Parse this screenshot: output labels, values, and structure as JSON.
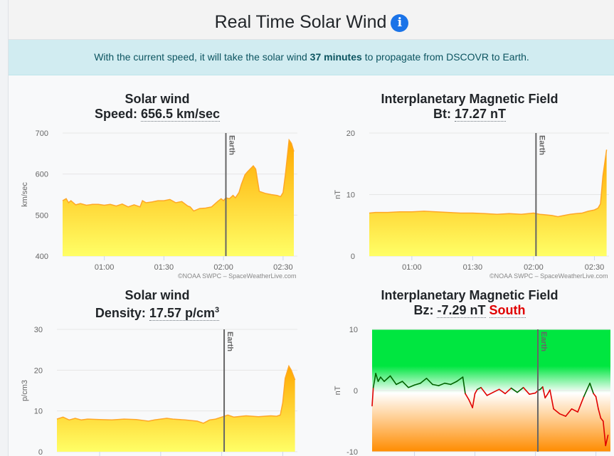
{
  "header": {
    "title": "Real Time Solar Wind",
    "info_icon": "info-icon",
    "accent_color": "#1a73e8"
  },
  "alert": {
    "prefix": "With the current speed, it will take the solar wind",
    "highlight": "37 minutes",
    "suffix": "to propagate from DSCOVR to Earth."
  },
  "charts": {
    "speed": {
      "title": "Solar wind",
      "label": "Speed:",
      "value": "656.5 km/sec",
      "credit": "©NOAA SWPC – SpaceWeatherLive.com"
    },
    "bt": {
      "title": "Interplanetary Magnetic Field",
      "label": "Bt:",
      "value": "17.27 nT",
      "credit": "©NOAA SWPC – SpaceWeatherLive.com"
    },
    "density": {
      "title": "Solar wind",
      "label": "Density:",
      "value": "17.57 p/cm",
      "value_sup": "3"
    },
    "bz": {
      "title": "Interplanetary Magnetic Field",
      "label": "Bz:",
      "value": "-7.29 nT",
      "direction": "South"
    }
  },
  "chart_data": [
    {
      "id": "speed",
      "type": "area",
      "ylabel": "km/sec",
      "ylim": [
        400,
        700
      ],
      "yticks": [
        400,
        500,
        600,
        700
      ],
      "xlim": [
        0.65,
        2.62
      ],
      "xticks": [
        1.0,
        1.5,
        2.0,
        2.5
      ],
      "xticklabels": [
        "01:00",
        "01:30",
        "02:00",
        "02:30"
      ],
      "marker": {
        "x": 2.02,
        "label": "Earth"
      },
      "x": [
        0.65,
        0.68,
        0.7,
        0.72,
        0.76,
        0.8,
        0.85,
        0.9,
        0.95,
        1.0,
        1.05,
        1.1,
        1.15,
        1.2,
        1.25,
        1.3,
        1.32,
        1.35,
        1.4,
        1.45,
        1.5,
        1.55,
        1.6,
        1.65,
        1.7,
        1.72,
        1.75,
        1.8,
        1.85,
        1.9,
        1.95,
        1.98,
        2.0,
        2.02,
        2.05,
        2.08,
        2.1,
        2.13,
        2.15,
        2.18,
        2.2,
        2.25,
        2.27,
        2.3,
        2.35,
        2.4,
        2.45,
        2.48,
        2.5,
        2.52,
        2.55,
        2.57,
        2.59
      ],
      "y": [
        535,
        540,
        530,
        535,
        525,
        528,
        524,
        526,
        526,
        524,
        526,
        522,
        527,
        520,
        525,
        520,
        535,
        530,
        532,
        535,
        535,
        538,
        530,
        533,
        522,
        520,
        510,
        516,
        517,
        520,
        533,
        540,
        535,
        542,
        540,
        548,
        542,
        555,
        575,
        598,
        605,
        620,
        612,
        558,
        553,
        550,
        548,
        545,
        555,
        600,
        683,
        675,
        655
      ],
      "grid": true,
      "fill_colors": [
        "#ffa800",
        "#ffff66"
      ],
      "line_color": "#ffa726"
    },
    {
      "id": "bt",
      "type": "area",
      "ylabel": "nT",
      "ylim": [
        0,
        20
      ],
      "yticks": [
        0,
        10,
        20
      ],
      "xlim": [
        0.65,
        2.62
      ],
      "xticks": [
        1.0,
        1.5,
        2.0,
        2.5
      ],
      "xticklabels": [
        "01:00",
        "01:30",
        "02:00",
        "02:30"
      ],
      "marker": {
        "x": 2.02,
        "label": "Earth"
      },
      "x": [
        0.65,
        0.7,
        0.8,
        0.9,
        1.0,
        1.1,
        1.2,
        1.3,
        1.4,
        1.5,
        1.6,
        1.7,
        1.8,
        1.9,
        2.0,
        2.05,
        2.1,
        2.15,
        2.2,
        2.25,
        2.3,
        2.35,
        2.4,
        2.45,
        2.5,
        2.53,
        2.55,
        2.57,
        2.6
      ],
      "y": [
        7.0,
        7.1,
        7.1,
        7.2,
        7.2,
        7.3,
        7.2,
        7.1,
        7.0,
        7.0,
        6.9,
        6.8,
        6.9,
        6.8,
        7.0,
        6.8,
        6.7,
        6.6,
        6.4,
        6.6,
        6.8,
        6.9,
        7.0,
        7.3,
        7.5,
        7.8,
        8.5,
        13.0,
        17.3
      ],
      "grid": true,
      "fill_colors": [
        "#ffa800",
        "#ffff66"
      ],
      "line_color": "#ffa726"
    },
    {
      "id": "density",
      "type": "area",
      "ylabel": "p/cm3",
      "ylim": [
        0,
        30
      ],
      "yticks": [
        0,
        10,
        20,
        30
      ],
      "xlim": [
        0.65,
        2.62
      ],
      "xticks": [
        1.0,
        1.5,
        2.0,
        2.5
      ],
      "marker": {
        "x": 2.02,
        "label": "Earth"
      },
      "x": [
        0.65,
        0.7,
        0.75,
        0.8,
        0.85,
        0.9,
        1.0,
        1.1,
        1.2,
        1.3,
        1.4,
        1.45,
        1.5,
        1.55,
        1.6,
        1.7,
        1.8,
        1.85,
        1.9,
        1.95,
        2.0,
        2.05,
        2.1,
        2.2,
        2.3,
        2.4,
        2.45,
        2.48,
        2.5,
        2.52,
        2.55,
        2.57,
        2.6
      ],
      "y": [
        8.0,
        8.5,
        7.8,
        8.2,
        7.8,
        8.0,
        7.9,
        7.8,
        8.0,
        7.9,
        7.5,
        7.8,
        8.0,
        8.2,
        8.0,
        7.8,
        7.5,
        7.0,
        7.8,
        8.0,
        8.5,
        9.0,
        8.5,
        8.8,
        8.6,
        8.8,
        8.7,
        9.0,
        12.0,
        18.0,
        21.0,
        20.0,
        17.6
      ],
      "grid": true,
      "fill_colors": [
        "#ffa800",
        "#ffff66"
      ],
      "line_color": "#ffa726"
    },
    {
      "id": "bz",
      "type": "line",
      "ylabel": "nT",
      "ylim": [
        -10,
        10
      ],
      "yticks": [
        -10,
        0,
        10
      ],
      "xlim": [
        0.65,
        2.62
      ],
      "xticks": [
        1.0,
        1.5,
        2.0,
        2.5
      ],
      "marker": {
        "x": 2.02,
        "label": "Earth"
      },
      "x": [
        0.65,
        0.66,
        0.68,
        0.7,
        0.72,
        0.75,
        0.8,
        0.85,
        0.9,
        0.95,
        1.0,
        1.05,
        1.1,
        1.15,
        1.2,
        1.25,
        1.3,
        1.35,
        1.4,
        1.42,
        1.45,
        1.48,
        1.5,
        1.52,
        1.55,
        1.6,
        1.65,
        1.7,
        1.75,
        1.8,
        1.85,
        1.9,
        1.95,
        2.0,
        2.02,
        2.04,
        2.06,
        2.08,
        2.1,
        2.12,
        2.15,
        2.2,
        2.25,
        2.3,
        2.35,
        2.4,
        2.45,
        2.48,
        2.5,
        2.52,
        2.54,
        2.56,
        2.58,
        2.6
      ],
      "y": [
        -2.5,
        0.5,
        2.8,
        1.5,
        2.2,
        1.5,
        2.4,
        1.0,
        1.5,
        0.5,
        0.9,
        1.2,
        2.0,
        1.0,
        0.8,
        1.2,
        1.0,
        1.5,
        2.2,
        -0.5,
        -1.5,
        -2.8,
        -0.5,
        0.2,
        0.5,
        -0.8,
        -0.3,
        0.2,
        -0.5,
        0.4,
        -0.3,
        0.5,
        -0.6,
        -0.4,
        0.0,
        0.2,
        0.6,
        -1.2,
        -0.6,
        0.1,
        -3.0,
        -3.8,
        -4.2,
        -3.0,
        -3.5,
        -1.0,
        1.2,
        -0.5,
        -1.0,
        -3.0,
        -4.5,
        -5.0,
        -9.0,
        -7.3
      ],
      "positive_color": "#006400",
      "negative_color": "#e00000",
      "background": [
        "#00e640",
        "#ffffff",
        "#ff8c00"
      ],
      "grid": true
    }
  ]
}
